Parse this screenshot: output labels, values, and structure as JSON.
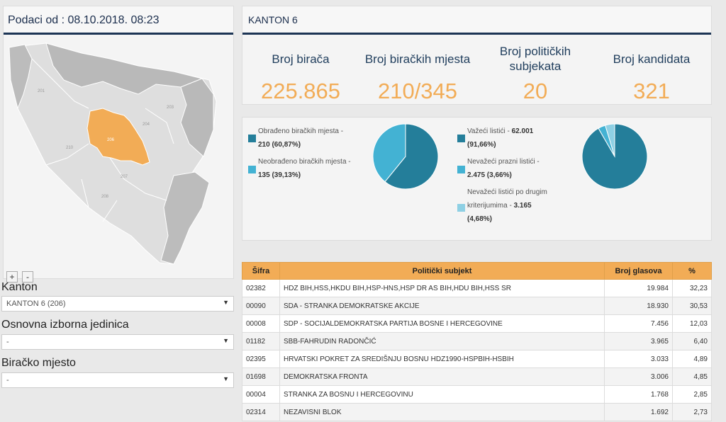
{
  "map": {
    "header": "Podaci od : 08.10.2018. 08:23",
    "region_labels": [
      "201",
      "210",
      "206",
      "204",
      "203",
      "207",
      "208"
    ],
    "colors": {
      "selected": "#f2ac56",
      "region": "#d9d9d9",
      "dark_region": "#b7b7b7"
    },
    "zoom_in": "+",
    "zoom_out": "-"
  },
  "filters": {
    "kanton_label": "Kanton",
    "kanton_value": "KANTON 6 (206)",
    "oij_label": "Osnovna izborna jedinica",
    "oij_value": "-",
    "bm_label": "Biračko mjesto",
    "bm_value": "-"
  },
  "stats": {
    "title": "KANTON 6",
    "items": [
      {
        "label": "Broj birača",
        "value": "225.865"
      },
      {
        "label": "Broj biračkih mjesta",
        "value": "210/345"
      },
      {
        "label": "Broj političkih subjekata",
        "value": "20"
      },
      {
        "label": "Broj kandidata",
        "value": "321"
      }
    ]
  },
  "charts": {
    "stations_legend": [
      {
        "text": "Obrađeno biračkih mjesta -",
        "value": "210 (60,87%)",
        "color": "#247e9a"
      },
      {
        "text": "Neobrađeno biračkih mjesta -",
        "value": "135 (39,13%)",
        "color": "#43b2d3"
      }
    ],
    "ballots_legend": [
      {
        "text": "Važeći listići -",
        "value": "62.001",
        "value2": "(91,66%)",
        "color": "#247e9a"
      },
      {
        "text": "Nevažeći prazni listići -",
        "value": "2.475 (3,66%)",
        "color": "#43b2d3"
      },
      {
        "text": "Nevažeći listići po drugim",
        "text2": "kriterijumima -",
        "value": "3.165",
        "value2": "(4,68%)",
        "color": "#8ed0e4"
      }
    ]
  },
  "chart_data": [
    {
      "type": "pie",
      "categories": [
        "Obrađeno biračkih mjesta",
        "Neobrađeno biračkih mjesta"
      ],
      "values": [
        210,
        135
      ],
      "colors": [
        "#247e9a",
        "#43b2d3"
      ]
    },
    {
      "type": "pie",
      "categories": [
        "Važeći listići",
        "Nevažeći prazni listići",
        "Nevažeći listići po drugim kriterijumima"
      ],
      "values": [
        62001,
        2475,
        3165
      ],
      "colors": [
        "#247e9a",
        "#43b2d3",
        "#8ed0e4"
      ]
    }
  ],
  "table": {
    "headers": [
      "Šifra",
      "Politički subjekt",
      "Broj glasova",
      "%"
    ],
    "rows": [
      [
        "02382",
        "HDZ BIH,HSS,HKDU BIH,HSP-HNS,HSP DR AS BIH,HDU BIH,HSS SR",
        "19.984",
        "32,23"
      ],
      [
        "00090",
        "SDA - STRANKA DEMOKRATSKE AKCIJE",
        "18.930",
        "30,53"
      ],
      [
        "00008",
        "SDP - SOCIJALDEMOKRATSKA PARTIJA BOSNE I HERCEGOVINE",
        "7.456",
        "12,03"
      ],
      [
        "01182",
        "SBB-FAHRUDIN RADONČIĆ",
        "3.965",
        "6,40"
      ],
      [
        "02395",
        "HRVATSKI POKRET ZA SREDIŠNJU BOSNU HDZ1990-HSPBIH-HSBIH",
        "3.033",
        "4,89"
      ],
      [
        "01698",
        "DEMOKRATSKA FRONTA",
        "3.006",
        "4,85"
      ],
      [
        "00004",
        "STRANKA ZA BOSNU I HERCEGOVINU",
        "1.768",
        "2,85"
      ],
      [
        "02314",
        "NEZAVISNI BLOK",
        "1.692",
        "2,73"
      ]
    ]
  }
}
